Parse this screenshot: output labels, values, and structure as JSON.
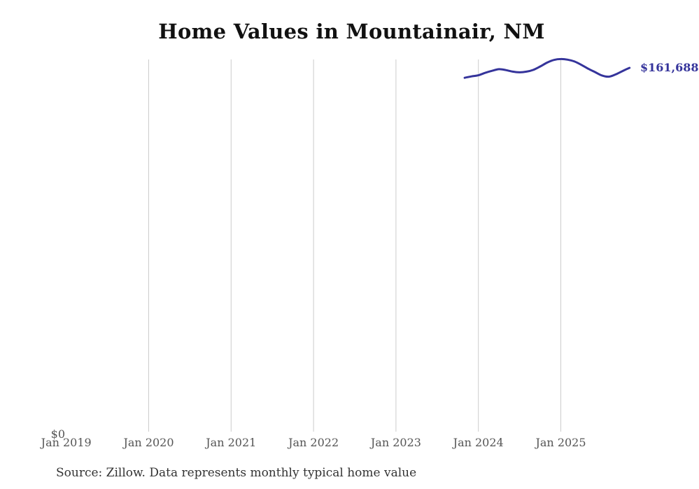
{
  "page": {
    "source_note": "Source: Zillow. Data represents monthly typical home value"
  },
  "chart_data": {
    "type": "line",
    "title": "Home Values in Mountainair, NM",
    "legend": "none",
    "grid": "vertical-only",
    "ylim": [
      0,
      166000
    ],
    "y_axis": {
      "min": 0,
      "min_label": "$0"
    },
    "x_ticks": [
      {
        "label": "Jan 2019",
        "month": "2019-01",
        "gridline": false
      },
      {
        "label": "Jan 2020",
        "month": "2020-01",
        "gridline": true
      },
      {
        "label": "Jan 2021",
        "month": "2021-01",
        "gridline": true
      },
      {
        "label": "Jan 2022",
        "month": "2022-01",
        "gridline": true
      },
      {
        "label": "Jan 2023",
        "month": "2023-01",
        "gridline": true
      },
      {
        "label": "Jan 2024",
        "month": "2024-01",
        "gridline": true
      },
      {
        "label": "Jan 2025",
        "month": "2025-01",
        "gridline": true
      }
    ],
    "end_label": "$161,688",
    "colors": {
      "line": "#35349b",
      "gridline": "#cccccc",
      "tick_label": "#555555",
      "title": "#111111",
      "source": "#333333"
    },
    "series": [
      {
        "name": "Typical home value",
        "points": [
          {
            "month": "2023-11",
            "value": 157300
          },
          {
            "month": "2023-12",
            "value": 157900
          },
          {
            "month": "2024-01",
            "value": 158400
          },
          {
            "month": "2024-02",
            "value": 159500
          },
          {
            "month": "2024-03",
            "value": 160400
          },
          {
            "month": "2024-04",
            "value": 161100
          },
          {
            "month": "2024-05",
            "value": 160700
          },
          {
            "month": "2024-06",
            "value": 160000
          },
          {
            "month": "2024-07",
            "value": 159700
          },
          {
            "month": "2024-08",
            "value": 160000
          },
          {
            "month": "2024-09",
            "value": 160800
          },
          {
            "month": "2024-10",
            "value": 162300
          },
          {
            "month": "2024-11",
            "value": 164000
          },
          {
            "month": "2024-12",
            "value": 165200
          },
          {
            "month": "2025-01",
            "value": 165600
          },
          {
            "month": "2025-02",
            "value": 165300
          },
          {
            "month": "2025-03",
            "value": 164500
          },
          {
            "month": "2025-04",
            "value": 163000
          },
          {
            "month": "2025-05",
            "value": 161300
          },
          {
            "month": "2025-06",
            "value": 159800
          },
          {
            "month": "2025-07",
            "value": 158300
          },
          {
            "month": "2025-08",
            "value": 157800
          },
          {
            "month": "2025-09",
            "value": 158800
          },
          {
            "month": "2025-10",
            "value": 160300
          },
          {
            "month": "2025-11",
            "value": 161688
          }
        ]
      }
    ]
  }
}
